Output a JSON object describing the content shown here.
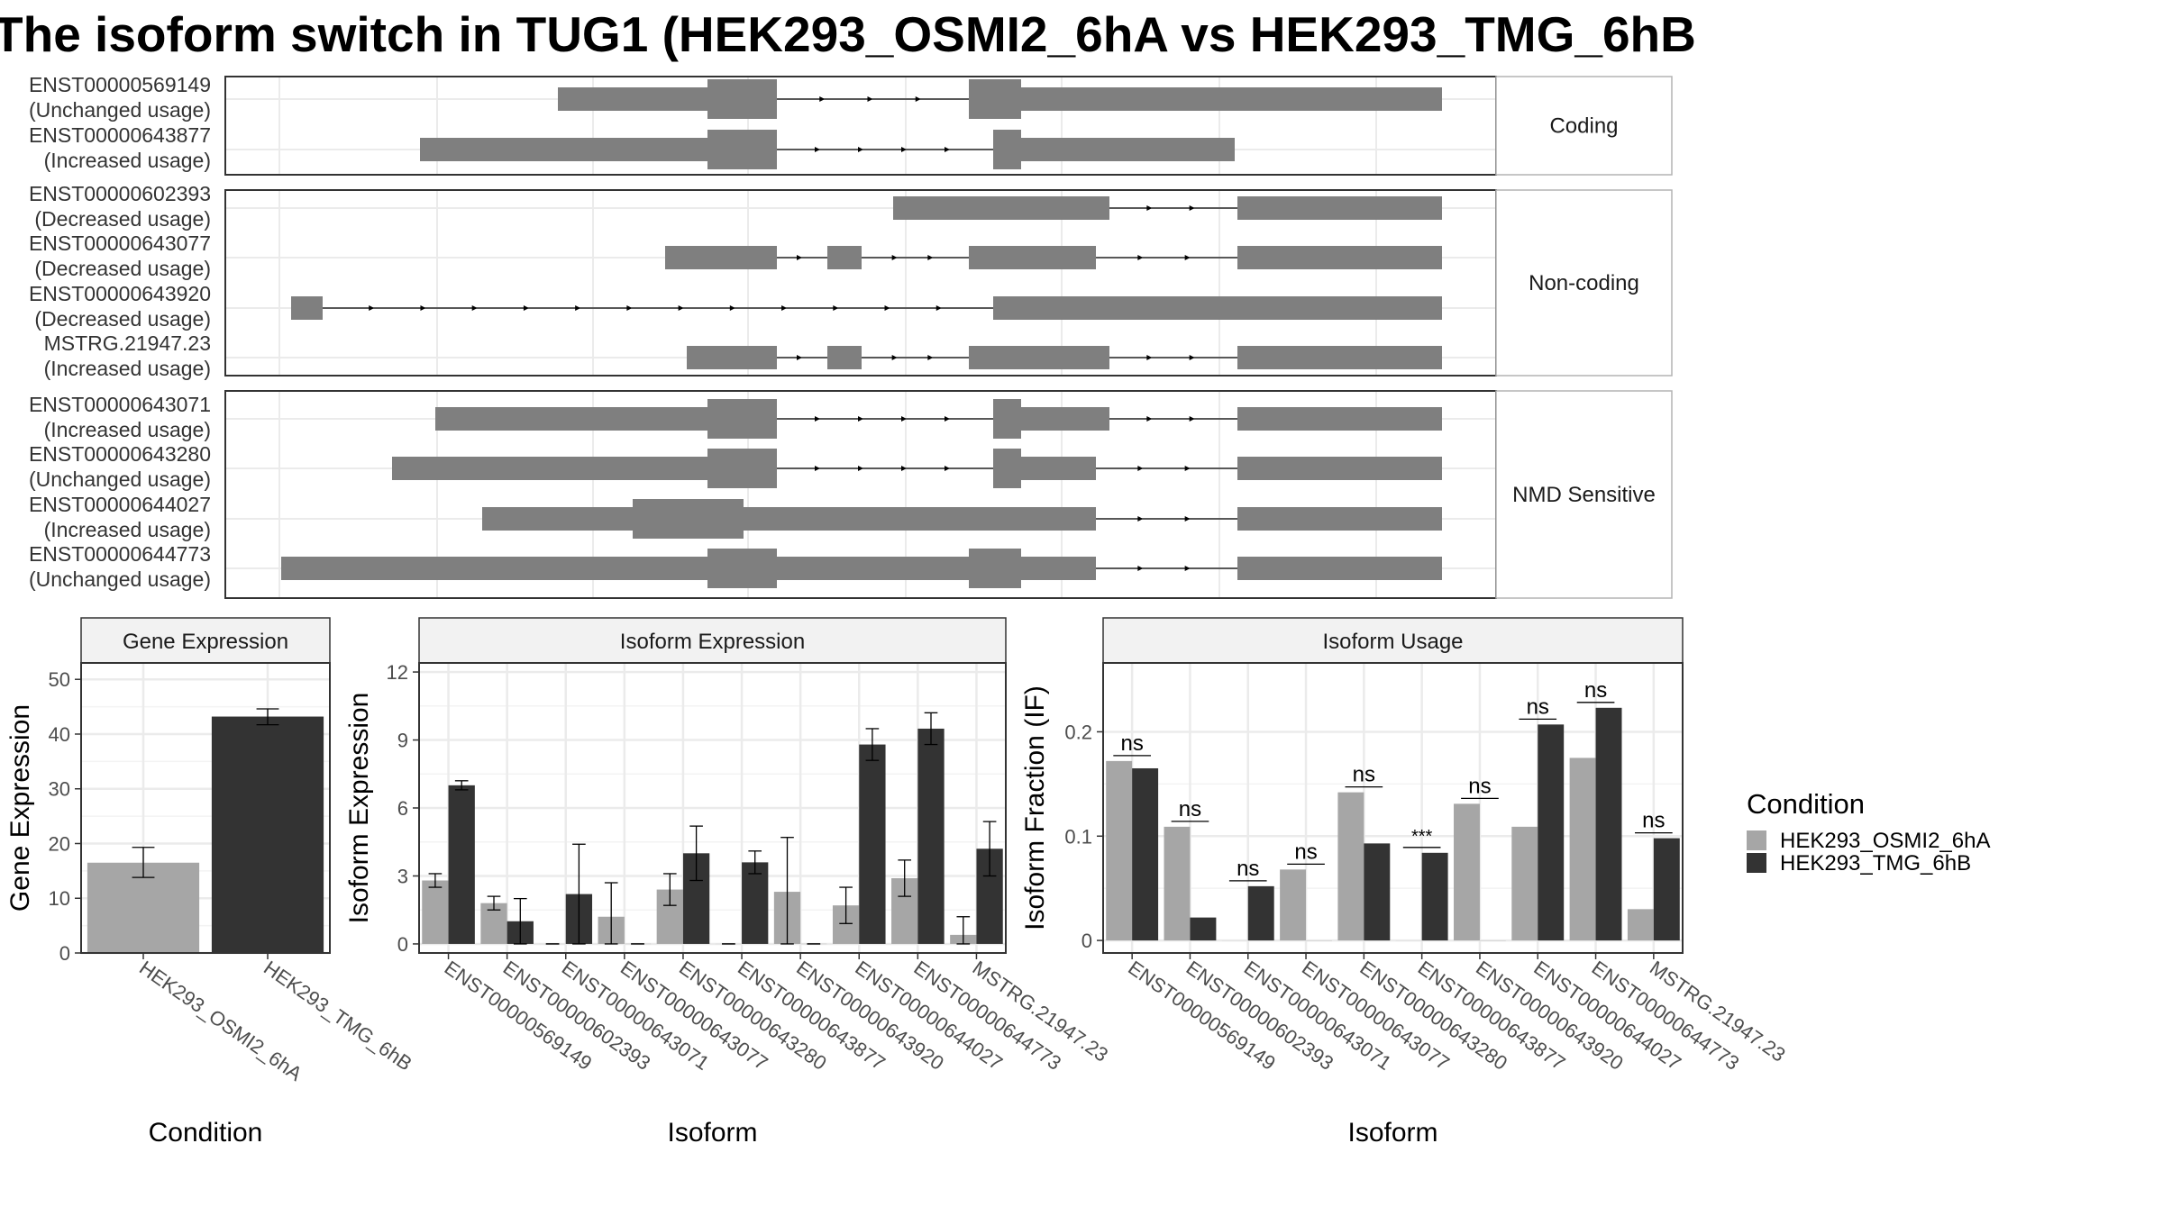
{
  "title": "The isoform switch in TUG1 (HEK293_OSMI2_6hA vs HEK293_TMG_6hB",
  "colors": {
    "exon": "#7f7f7f",
    "cond_a": "#a6a6a6",
    "cond_b": "#333333",
    "grid": "#ebebeb",
    "strip": "#f2f2f2",
    "panel_border": "#333333",
    "strip_border": "#b3b3b3"
  },
  "structure": {
    "panels": [
      {
        "label": "Coding",
        "transcripts": [
          {
            "id": "ENST00000569149",
            "status": "(Unchanged usage)"
          },
          {
            "id": "ENST00000643877",
            "status": "(Increased usage)"
          }
        ]
      },
      {
        "label": "Non-coding",
        "transcripts": [
          {
            "id": "ENST00000602393",
            "status": "(Decreased usage)"
          },
          {
            "id": "ENST00000643077",
            "status": "(Decreased usage)"
          },
          {
            "id": "ENST00000643920",
            "status": "(Decreased usage)"
          },
          {
            "id": "MSTRG.21947.23",
            "status": "(Increased usage)"
          }
        ]
      },
      {
        "label": "NMD Sensitive",
        "transcripts": [
          {
            "id": "ENST00000643071",
            "status": "(Increased usage)"
          },
          {
            "id": "ENST00000643280",
            "status": "(Unchanged usage)"
          },
          {
            "id": "ENST00000644027",
            "status": "(Increased usage)"
          },
          {
            "id": "ENST00000644773",
            "status": "(Unchanged usage)"
          }
        ]
      }
    ]
  },
  "legend": {
    "title": "Condition",
    "items": [
      "HEK293_OSMI2_6hA",
      "HEK293_TMG_6hB"
    ]
  },
  "chart_data": [
    {
      "type": "bar",
      "title": "Gene Expression",
      "xlabel": "Condition",
      "ylabel": "Gene Expression",
      "categories": [
        "HEK293_OSMI2_6hA",
        "HEK293_TMG_6hB"
      ],
      "values": [
        16.5,
        43.2
      ],
      "err_low": [
        13.8,
        41.7
      ],
      "err_high": [
        19.3,
        44.6
      ],
      "ylim": [
        0,
        53
      ],
      "yticks": [
        0,
        10,
        20,
        30,
        40,
        50
      ]
    },
    {
      "type": "bar",
      "title": "Isoform Expression",
      "xlabel": "Isoform",
      "ylabel": "Isoform Expression",
      "categories": [
        "ENST00000569149",
        "ENST00000602393",
        "ENST00000643071",
        "ENST00000643077",
        "ENST00000643280",
        "ENST00000643877",
        "ENST00000643920",
        "ENST00000644027",
        "ENST00000644773",
        "MSTRG.21947.23"
      ],
      "ylim": [
        -0.4,
        12.4
      ],
      "yticks": [
        0,
        3,
        6,
        9,
        12
      ],
      "series": [
        {
          "name": "HEK293_OSMI2_6hA",
          "values": [
            2.8,
            1.8,
            0.0,
            1.2,
            2.4,
            0.0,
            2.3,
            1.7,
            2.9,
            0.4
          ],
          "err_low": [
            2.5,
            1.5,
            0.0,
            0.0,
            1.7,
            0.0,
            0.0,
            0.9,
            2.1,
            0.0
          ],
          "err_high": [
            3.1,
            2.1,
            0.0,
            2.7,
            3.1,
            0.0,
            4.7,
            2.5,
            3.7,
            1.2
          ]
        },
        {
          "name": "HEK293_TMG_6hB",
          "values": [
            7.0,
            1.0,
            2.2,
            0.0,
            4.0,
            3.6,
            0.0,
            8.8,
            9.5,
            4.2
          ],
          "err_low": [
            6.8,
            0.0,
            0.0,
            0.0,
            2.8,
            3.1,
            0.0,
            8.1,
            8.8,
            3.0
          ],
          "err_high": [
            7.2,
            2.0,
            4.4,
            0.0,
            5.2,
            4.1,
            0.0,
            9.5,
            10.2,
            5.4
          ]
        }
      ]
    },
    {
      "type": "bar",
      "title": "Isoform Usage",
      "xlabel": "Isoform",
      "ylabel": "Isoform Fraction (IF)",
      "categories": [
        "ENST00000569149",
        "ENST00000602393",
        "ENST00000643071",
        "ENST00000643077",
        "ENST00000643280",
        "ENST00000643877",
        "ENST00000643920",
        "ENST00000644027",
        "ENST00000644773",
        "MSTRG.21947.23"
      ],
      "ylim": [
        -0.012,
        0.266
      ],
      "yticks": [
        0.0,
        0.1,
        0.2
      ],
      "series": [
        {
          "name": "HEK293_OSMI2_6hA",
          "values": [
            0.172,
            0.109,
            0.0,
            0.068,
            0.142,
            0.0,
            0.131,
            0.109,
            0.175,
            0.03
          ]
        },
        {
          "name": "HEK293_TMG_6hB",
          "values": [
            0.165,
            0.022,
            0.052,
            0.0,
            0.093,
            0.084,
            0.0,
            0.207,
            0.223,
            0.098
          ]
        }
      ],
      "significance": [
        "ns",
        "ns",
        "ns",
        "ns",
        "ns",
        "***",
        "ns",
        "ns",
        "ns",
        "ns"
      ]
    }
  ]
}
